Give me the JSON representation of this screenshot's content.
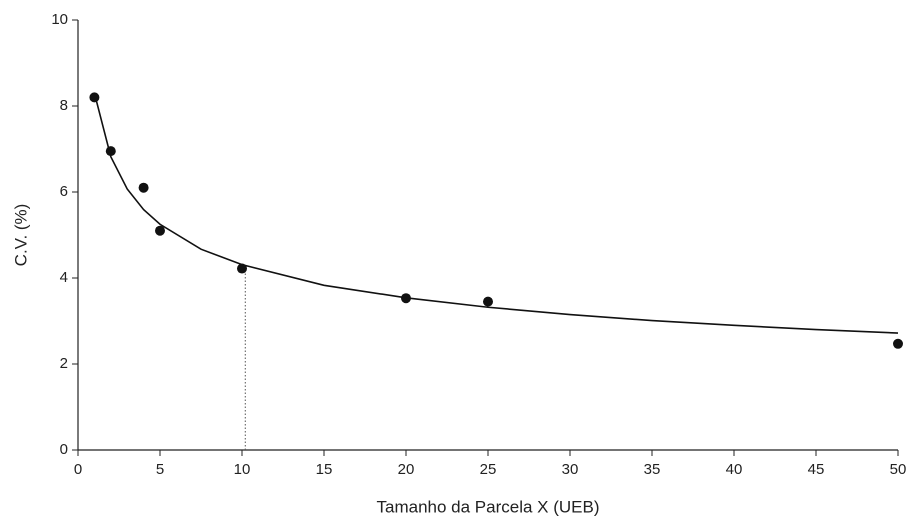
{
  "chart_data": {
    "type": "scatter",
    "x_label": "Tamanho da Parcela X (UEB)",
    "y_label": "C.V. (%)",
    "x": [
      1,
      2,
      4,
      5,
      10,
      20,
      25,
      50
    ],
    "values": [
      8.2,
      6.95,
      6.1,
      5.1,
      4.22,
      3.53,
      3.45,
      2.47
    ],
    "color": "#111111",
    "fit": {
      "x": [
        1,
        2,
        3,
        4,
        5,
        7.5,
        10,
        15,
        20,
        25,
        30,
        35,
        40,
        45,
        50
      ],
      "values": [
        8.3,
        6.82,
        6.07,
        5.59,
        5.25,
        4.67,
        4.31,
        3.83,
        3.54,
        3.32,
        3.15,
        3.01,
        2.9,
        2.8,
        2.72
      ]
    },
    "reference_line": {
      "x": 10.2,
      "y": 4.28
    },
    "xlim": [
      0,
      50
    ],
    "xticks": [
      0,
      5,
      10,
      15,
      20,
      25,
      30,
      35,
      40,
      45,
      50
    ],
    "ylim": [
      0,
      10
    ],
    "yticks": [
      0,
      2,
      4,
      6,
      8,
      10
    ]
  }
}
